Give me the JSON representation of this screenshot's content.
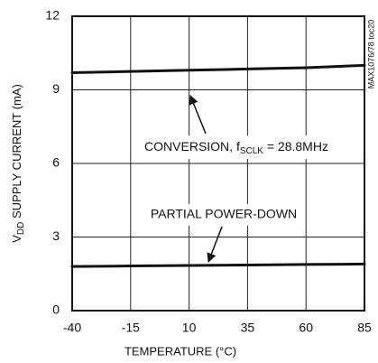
{
  "chart_data": {
    "type": "line",
    "x_label": "TEMPERATURE (°C)",
    "y_label": {
      "main": "V",
      "sub": "DD",
      "rest": " SUPPLY CURRENT (mA)"
    },
    "side_note": "MAX1076/78 toc20",
    "x": [
      -40,
      -15,
      10,
      35,
      60,
      85
    ],
    "series": [
      {
        "name": "CONVERSION",
        "color": "#111111",
        "values": [
          9.7,
          9.75,
          9.8,
          9.85,
          9.9,
          10.0
        ]
      },
      {
        "name": "PARTIAL POWER-DOWN",
        "color": "#111111",
        "values": [
          1.8,
          1.82,
          1.84,
          1.86,
          1.88,
          1.9
        ]
      }
    ],
    "annotations": {
      "conversion": {
        "text": "CONVERSION, f",
        "sub": "SCLK",
        "after": " = 28.8MHz"
      },
      "partial": "PARTIAL POWER-DOWN"
    },
    "xlim": [
      -40,
      85
    ],
    "xticks": [
      -40,
      -15,
      10,
      35,
      60,
      85
    ],
    "ylim": [
      0,
      12
    ],
    "yticks": [
      0,
      3,
      6,
      9,
      12
    ],
    "grid": true
  }
}
